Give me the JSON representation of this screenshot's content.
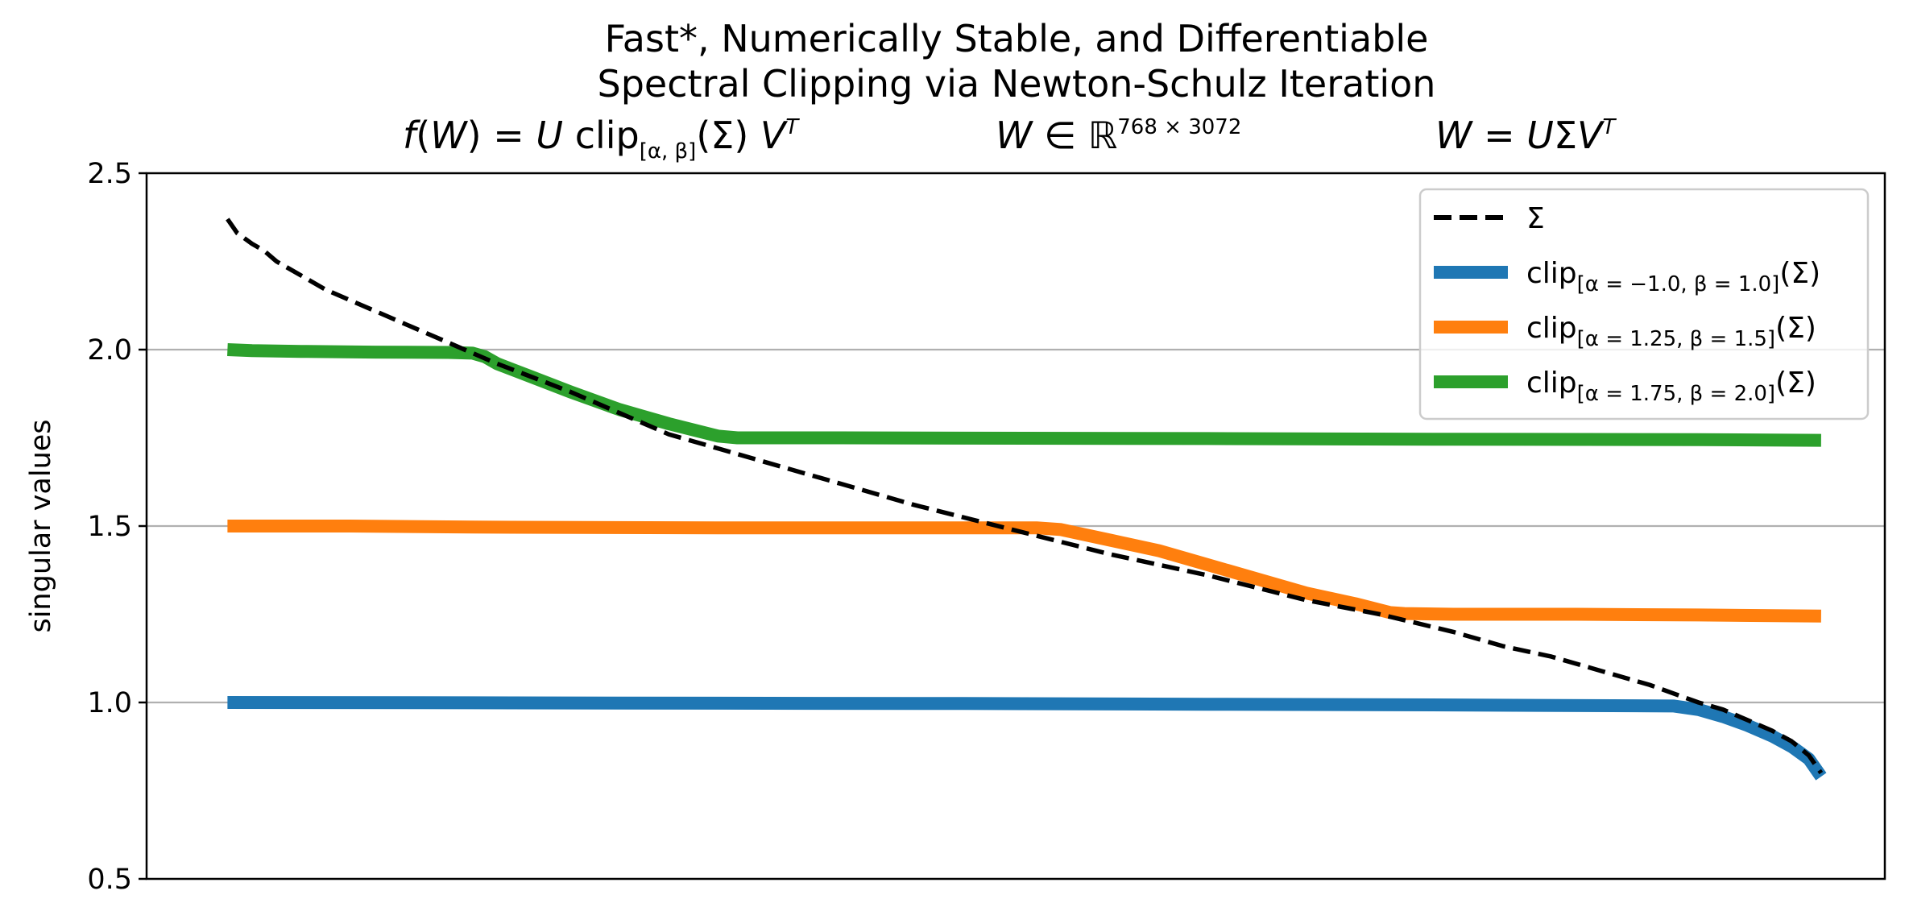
{
  "chart_data": {
    "type": "line",
    "title_lines": [
      "Fast*, Numerically Stable, and Differentiable",
      "Spectral Clipping via Newton-Schulz Iteration"
    ],
    "formulas": {
      "f": {
        "lhs_func": "f",
        "lhs_arg": "W",
        "eq": " = ",
        "U": "U",
        "clip": "clip",
        "clip_sub": "[α, β]",
        "sigma": "(Σ)",
        "V": "V",
        "VT_sup": "T"
      },
      "domain": {
        "W": "W",
        "in": " ∈ ",
        "R": "ℝ",
        "dims": "768 × 3072"
      },
      "svd": {
        "W": "W",
        "eq": " = ",
        "U": "U",
        "Sigma": "Σ",
        "V": "V",
        "VT_sup": "T"
      }
    },
    "xlabel": "",
    "ylabel": "singular values",
    "ylim": [
      0.5,
      2.5
    ],
    "yticks": [
      0.5,
      1.0,
      1.5,
      2.0,
      2.5
    ],
    "ytick_labels": [
      "0.5",
      "1.0",
      "1.5",
      "2.0",
      "2.5"
    ],
    "grid": {
      "y": true,
      "x": false,
      "major_y": [
        1.0,
        1.5,
        2.0
      ]
    },
    "xlim": [
      -33,
      676
    ],
    "legend": {
      "position": "top-right"
    },
    "series": [
      {
        "name": "Σ",
        "key": "sigma",
        "color": "#000000",
        "style": "dashed",
        "x": [
          0,
          2,
          4,
          6,
          10,
          15,
          20,
          30,
          40,
          50,
          60,
          70,
          80,
          90,
          100,
          110,
          125,
          140,
          160,
          180,
          200,
          220,
          250,
          280,
          320,
          360,
          400,
          440,
          470,
          500,
          520,
          540,
          560,
          580,
          600,
          610,
          620,
          630,
          638,
          645,
          650
        ],
        "y": [
          2.37,
          2.35,
          2.33,
          2.32,
          2.3,
          2.28,
          2.25,
          2.21,
          2.17,
          2.14,
          2.11,
          2.08,
          2.05,
          2.02,
          1.99,
          1.96,
          1.92,
          1.88,
          1.82,
          1.76,
          1.72,
          1.68,
          1.62,
          1.56,
          1.49,
          1.42,
          1.36,
          1.29,
          1.25,
          1.2,
          1.16,
          1.13,
          1.09,
          1.05,
          1.0,
          0.98,
          0.95,
          0.92,
          0.89,
          0.85,
          0.8
        ]
      },
      {
        "name": "clip",
        "sub": "[α = −1.0, β = 1.0]",
        "suffix": "(Σ)",
        "key": "clip1",
        "color": "#1f77b4",
        "x": [
          0,
          100,
          200,
          300,
          400,
          500,
          590,
          600,
          610,
          620,
          630,
          638,
          645,
          650
        ],
        "y": [
          1.0,
          0.999,
          0.998,
          0.997,
          0.995,
          0.993,
          0.99,
          0.98,
          0.96,
          0.935,
          0.905,
          0.875,
          0.84,
          0.79
        ]
      },
      {
        "name": "clip",
        "sub": "[α = 1.25, β = 1.5]",
        "suffix": "(Σ)",
        "key": "clip2",
        "color": "#ff7f0e",
        "x": [
          0,
          50,
          100,
          200,
          300,
          330,
          340,
          360,
          380,
          400,
          420,
          440,
          460,
          474,
          480,
          500,
          550,
          600,
          650
        ],
        "y": [
          1.5,
          1.5,
          1.497,
          1.495,
          1.495,
          1.495,
          1.49,
          1.46,
          1.43,
          1.39,
          1.35,
          1.31,
          1.28,
          1.255,
          1.252,
          1.25,
          1.25,
          1.248,
          1.245
        ]
      },
      {
        "name": "clip",
        "sub": "[α = 1.75, β = 2.0]",
        "suffix": "(Σ)",
        "key": "clip3",
        "color": "#2ca02c",
        "x": [
          0,
          10,
          30,
          60,
          90,
          100,
          105,
          110,
          125,
          140,
          160,
          180,
          200,
          208,
          215,
          250,
          300,
          400,
          500,
          600,
          650
        ],
        "y": [
          2.0,
          1.997,
          1.995,
          1.993,
          1.992,
          1.99,
          1.98,
          1.96,
          1.92,
          1.88,
          1.83,
          1.79,
          1.755,
          1.75,
          1.75,
          1.75,
          1.749,
          1.748,
          1.746,
          1.745,
          1.743
        ]
      }
    ]
  }
}
